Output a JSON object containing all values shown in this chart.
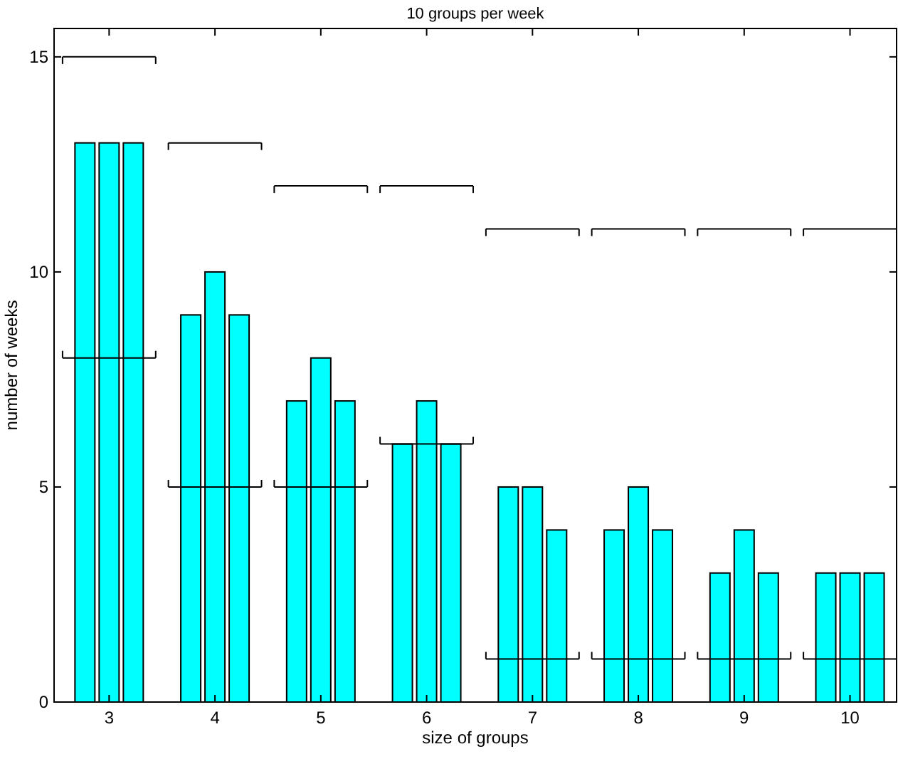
{
  "chart_data": {
    "type": "bar",
    "title": "10 groups per week",
    "xlabel": "size of groups",
    "ylabel": "number of weeks",
    "x": [
      3,
      4,
      5,
      6,
      7,
      8,
      9,
      10
    ],
    "series": [
      {
        "color": "#00ffff",
        "values": [
          13,
          9,
          7,
          6,
          5,
          4,
          3,
          3
        ]
      },
      {
        "color": "#00ffff",
        "values": [
          13,
          10,
          8,
          7,
          5,
          5,
          4,
          3
        ]
      },
      {
        "color": "#00ffff",
        "values": [
          13,
          9,
          7,
          6,
          4,
          4,
          3,
          3
        ]
      },
      {
        "type": "line",
        "color": "#000000",
        "x": [
          2.56,
          3.44,
          3.5,
          3.56,
          4.44,
          4.5,
          4.56,
          5.44,
          5.5,
          5.56,
          6.44,
          6.5,
          6.56,
          7.44,
          7.5,
          7.56,
          8.44,
          8.5,
          8.56,
          9.44,
          9.5,
          9.56,
          10.44
        ],
        "values": [
          15,
          15,
          null,
          13,
          13,
          null,
          12,
          12,
          null,
          12,
          12,
          null,
          11,
          11,
          null,
          11,
          11,
          null,
          11,
          11,
          null,
          11,
          11
        ]
      },
      {
        "type": "line",
        "color": "#000000",
        "x": [
          2.56,
          3.44,
          3.5,
          3.56,
          4.44,
          4.5,
          4.56,
          5.44,
          5.5,
          5.56,
          6.44,
          6.5,
          6.56,
          7.44,
          7.5,
          7.56,
          8.44,
          8.5,
          8.56,
          9.44,
          9.5,
          9.56,
          10.44
        ],
        "values": [
          8,
          8,
          null,
          5,
          5,
          null,
          5,
          5,
          null,
          6,
          6,
          null,
          1,
          1,
          null,
          1,
          1,
          null,
          1,
          1,
          null,
          1,
          1
        ]
      }
    ],
    "xlim": [
      2.48,
      10.44
    ],
    "xticks": [
      3,
      4,
      5,
      6,
      7,
      8,
      9,
      10
    ],
    "ylim": [
      0,
      15.66
    ],
    "yticks": [
      0,
      5,
      10,
      15
    ],
    "grid": false
  }
}
